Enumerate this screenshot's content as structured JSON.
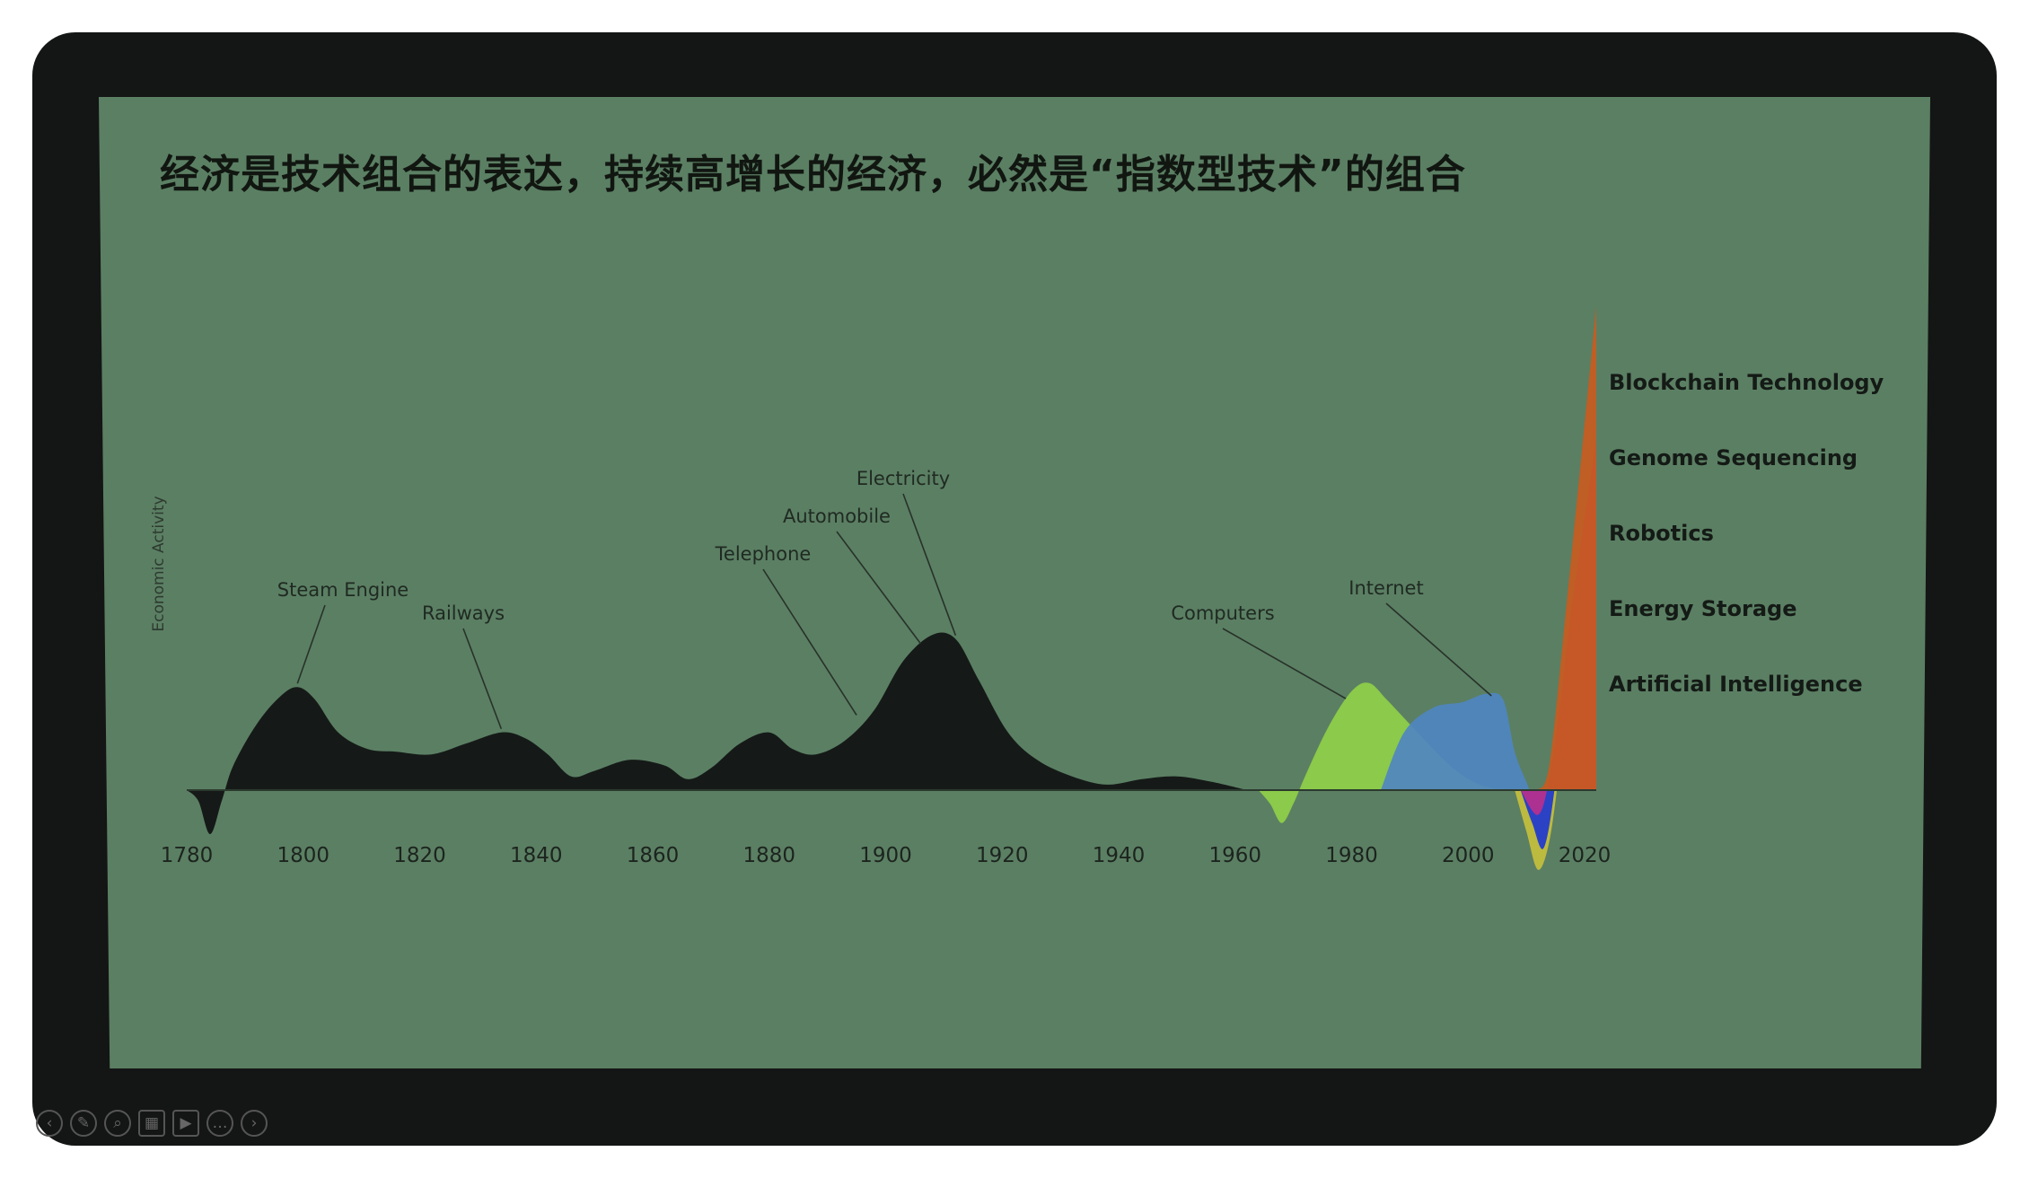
{
  "slide": {
    "title": "经济是技术组合的表达，持续高增长的经济，必然是“指数型技术”的组合"
  },
  "chart_data": {
    "type": "area",
    "ylabel": "Economic Activity",
    "xlabel": "",
    "xlim": [
      1780,
      2022
    ],
    "x_ticks": [
      1780,
      1800,
      1820,
      1840,
      1860,
      1880,
      1900,
      1920,
      1940,
      1960,
      1980,
      2000,
      2020
    ],
    "series": [
      {
        "id": "industrial",
        "color": "#151a18",
        "points": [
          [
            1780,
            0
          ],
          [
            1782,
            -8
          ],
          [
            1784,
            -32
          ],
          [
            1786,
            -8
          ],
          [
            1788,
            18
          ],
          [
            1792,
            48
          ],
          [
            1796,
            68
          ],
          [
            1799,
            75
          ],
          [
            1802,
            66
          ],
          [
            1806,
            42
          ],
          [
            1811,
            30
          ],
          [
            1816,
            28
          ],
          [
            1822,
            26
          ],
          [
            1828,
            34
          ],
          [
            1834,
            42
          ],
          [
            1838,
            38
          ],
          [
            1842,
            26
          ],
          [
            1846,
            10
          ],
          [
            1850,
            14
          ],
          [
            1856,
            22
          ],
          [
            1862,
            18
          ],
          [
            1866,
            8
          ],
          [
            1870,
            16
          ],
          [
            1875,
            34
          ],
          [
            1880,
            42
          ],
          [
            1884,
            30
          ],
          [
            1888,
            26
          ],
          [
            1893,
            36
          ],
          [
            1898,
            58
          ],
          [
            1903,
            94
          ],
          [
            1908,
            113
          ],
          [
            1912,
            110
          ],
          [
            1916,
            80
          ],
          [
            1921,
            42
          ],
          [
            1926,
            22
          ],
          [
            1932,
            10
          ],
          [
            1938,
            4
          ],
          [
            1944,
            8
          ],
          [
            1950,
            10
          ],
          [
            1956,
            6
          ],
          [
            1962,
            0
          ]
        ]
      },
      {
        "id": "computers",
        "color": "#8fd048",
        "points": [
          [
            1964,
            0
          ],
          [
            1966,
            -10
          ],
          [
            1968,
            -24
          ],
          [
            1970,
            -10
          ],
          [
            1972,
            10
          ],
          [
            1976,
            46
          ],
          [
            1980,
            72
          ],
          [
            1983,
            78
          ],
          [
            1986,
            66
          ],
          [
            1990,
            48
          ],
          [
            1994,
            30
          ],
          [
            1998,
            14
          ],
          [
            2002,
            4
          ],
          [
            2006,
            0
          ]
        ]
      },
      {
        "id": "internet",
        "color": "#4f86c0",
        "points": [
          [
            1985,
            0
          ],
          [
            1989,
            42
          ],
          [
            1994,
            60
          ],
          [
            1999,
            64
          ],
          [
            2003,
            70
          ],
          [
            2006,
            66
          ],
          [
            2008,
            28
          ],
          [
            2010,
            6
          ],
          [
            2012,
            -14
          ],
          [
            2014,
            0
          ]
        ]
      },
      {
        "id": "ai-energy",
        "color": "#c4bf3c",
        "points": [
          [
            2008,
            0
          ],
          [
            2010,
            -30
          ],
          [
            2012,
            -58
          ],
          [
            2014,
            -36
          ],
          [
            2016,
            24
          ],
          [
            2018,
            76
          ],
          [
            2022,
            122
          ]
        ]
      },
      {
        "id": "robotics",
        "color": "#1e37d0",
        "points": [
          [
            2009,
            0
          ],
          [
            2011,
            -24
          ],
          [
            2013,
            -42
          ],
          [
            2015,
            6
          ],
          [
            2017,
            90
          ],
          [
            2022,
            210
          ]
        ]
      },
      {
        "id": "genome",
        "color": "#b8308c",
        "points": [
          [
            2009,
            0
          ],
          [
            2012,
            -18
          ],
          [
            2014,
            10
          ],
          [
            2016,
            70
          ],
          [
            2018,
            140
          ],
          [
            2022,
            255
          ]
        ]
      },
      {
        "id": "blockchain",
        "color": "#c85b1f",
        "points": [
          [
            2012,
            0
          ],
          [
            2014,
            20
          ],
          [
            2017,
            140
          ],
          [
            2022,
            352
          ]
        ]
      }
    ],
    "annotations": [
      {
        "label": "Steam Engine",
        "x": 1799,
        "y": 75
      },
      {
        "label": "Railways",
        "x": 1834,
        "y": 42
      },
      {
        "label": "Telephone",
        "x": 1895,
        "y": 52
      },
      {
        "label": "Automobile",
        "x": 1906,
        "y": 104
      },
      {
        "label": "Electricity",
        "x": 1912,
        "y": 110
      },
      {
        "label": "Computers",
        "x": 1979,
        "y": 64
      },
      {
        "label": "Internet",
        "x": 2004,
        "y": 66
      }
    ],
    "legend": {
      "position": "right",
      "items": [
        {
          "label": "Blockchain Technology",
          "color": "#c85b1f"
        },
        {
          "label": "Genome Sequencing",
          "color": "#b8308c"
        },
        {
          "label": "Robotics",
          "color": "#1e37d0"
        },
        {
          "label": "Energy Storage",
          "color": "#c4bf3c"
        },
        {
          "label": "Artificial Intelligence",
          "color": "#c4bf3c"
        }
      ]
    }
  },
  "playback_controls": {
    "icons": [
      "prev-icon",
      "pen-icon",
      "zoom-icon",
      "slides-icon",
      "video-icon",
      "more-icon",
      "next-icon"
    ],
    "glyphs": [
      "‹",
      "✎",
      "⌕",
      "▦",
      "▶",
      "…",
      "›"
    ]
  }
}
